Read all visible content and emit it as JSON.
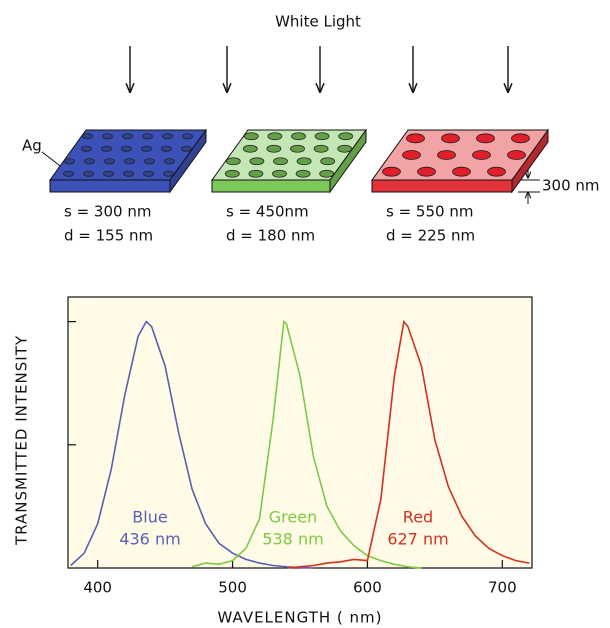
{
  "diagram": {
    "title": "White Light",
    "material_label": "Ag",
    "thickness_label": "300 nm",
    "plates": [
      {
        "color": "#3d52b8",
        "s_label": "s = 300 nm",
        "d_label": "d = 155 nm"
      },
      {
        "color": "#7dc85a",
        "s_label": "s = 450nm",
        "d_label": "d = 180 nm"
      },
      {
        "color": "#e2323a",
        "s_label": "s = 550 nm",
        "d_label": "d = 225 nm"
      }
    ]
  },
  "chart_data": {
    "type": "line",
    "xlabel": "WAVELENGTH ( nm)",
    "ylabel": "TRANSMITTED INTENSITY",
    "x": [
      380,
      390,
      400,
      410,
      420,
      430,
      436,
      440,
      450,
      460,
      470,
      480,
      490,
      500,
      510,
      520,
      530,
      538,
      540,
      550,
      560,
      570,
      580,
      590,
      600,
      610,
      620,
      627,
      630,
      640,
      650,
      660,
      670,
      680,
      690,
      700,
      710,
      720
    ],
    "series": [
      {
        "name": "Blue",
        "color": "#5a5fb5",
        "peak_label": "436 nm",
        "values": [
          0.01,
          0.06,
          0.18,
          0.4,
          0.7,
          0.94,
          1.0,
          0.98,
          0.82,
          0.55,
          0.32,
          0.18,
          0.1,
          0.06,
          0.035,
          0.02,
          0.01,
          0.006,
          0.005,
          0.002,
          0,
          null,
          null,
          null,
          null,
          null,
          null,
          null,
          null,
          null,
          null,
          null,
          null,
          null,
          null,
          null,
          null,
          null
        ]
      },
      {
        "name": "Green",
        "color": "#7cc948",
        "peak_label": "538 nm",
        "values": [
          null,
          null,
          null,
          null,
          null,
          null,
          null,
          null,
          null,
          null,
          0.005,
          0.02,
          0.015,
          0.03,
          0.08,
          0.2,
          0.6,
          1.0,
          0.99,
          0.78,
          0.45,
          0.25,
          0.15,
          0.09,
          0.05,
          0.03,
          0.015,
          0.008,
          0.005,
          0,
          null,
          null,
          null,
          null,
          null,
          null,
          null,
          null
        ]
      },
      {
        "name": "Red",
        "color": "#d2321e",
        "peak_label": "627 nm",
        "values": [
          null,
          null,
          null,
          null,
          null,
          null,
          null,
          null,
          null,
          null,
          null,
          null,
          null,
          null,
          null,
          null,
          null,
          null,
          0,
          0.005,
          0.01,
          0.02,
          0.025,
          0.035,
          0.03,
          0.28,
          0.78,
          1.0,
          0.98,
          0.82,
          0.52,
          0.33,
          0.21,
          0.13,
          0.08,
          0.05,
          0.03,
          0.02
        ]
      }
    ],
    "xlim": [
      378,
      722
    ],
    "xticks": [
      400,
      500,
      600,
      700
    ],
    "ylim": [
      0,
      1.1
    ],
    "yticks": [
      0.5,
      1
    ],
    "background": "#fffbe6"
  }
}
